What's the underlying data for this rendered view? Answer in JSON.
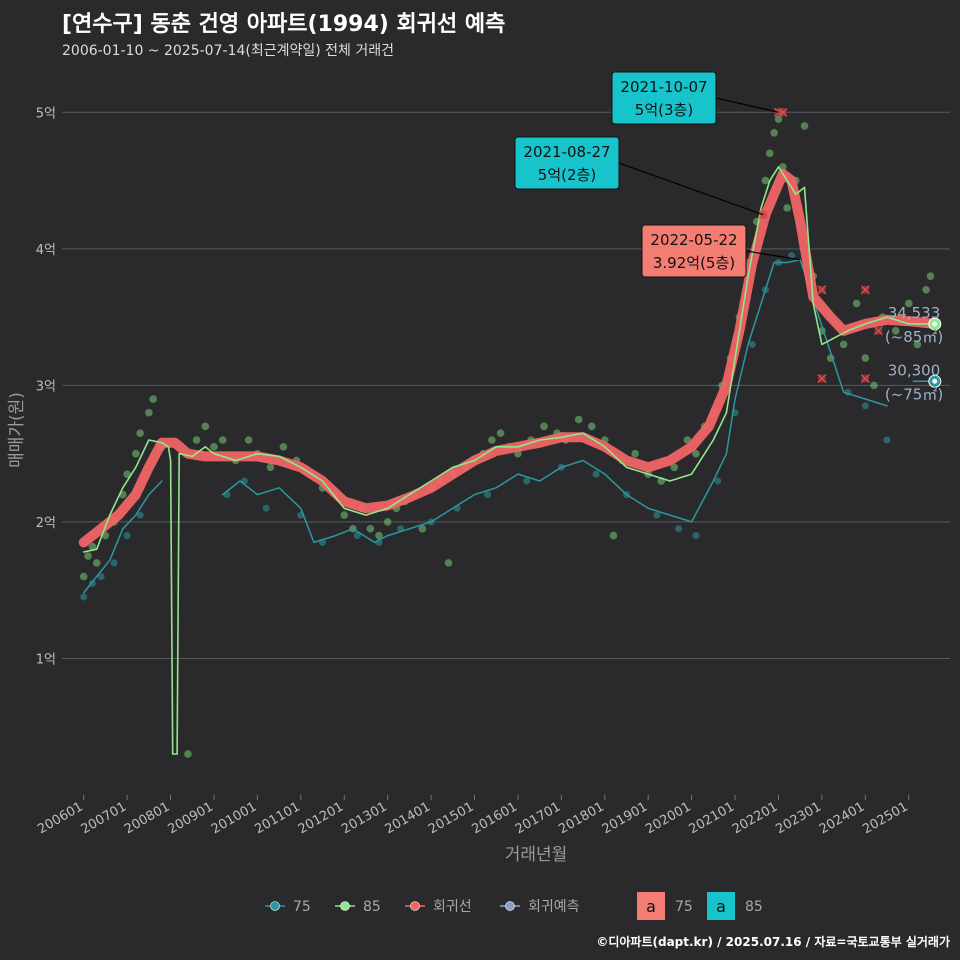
{
  "title": "[연수구] 동춘 건영 아파트(1994) 회귀선 예측",
  "subtitle": "2006-01-10 ~ 2025-07-14(최근계약일) 전체 거래건",
  "footer": "©디아파트(dapt.kr) / 2025.07.16 / 자료=국토교통부 실거래가",
  "colors": {
    "s75": "#2b98a0",
    "s85": "#8fe88a",
    "regression": "#f06565",
    "forecast": "#8aa0c8",
    "ann_blue": "#17c4cc",
    "ann_red": "#f47d73"
  },
  "chart_data": {
    "type": "line",
    "xlabel": "거래년월",
    "ylabel": "매매가(원)",
    "x_ticks": [
      "200601",
      "200701",
      "200801",
      "200901",
      "201001",
      "201101",
      "201201",
      "201301",
      "201401",
      "201501",
      "201601",
      "201701",
      "201801",
      "201901",
      "202001",
      "202101",
      "202201",
      "202301",
      "202401",
      "202501"
    ],
    "y_ticks": [
      {
        "value": 1,
        "label": "1억"
      },
      {
        "value": 2,
        "label": "2억"
      },
      {
        "value": 3,
        "label": "3억"
      },
      {
        "value": 4,
        "label": "4억"
      },
      {
        "value": 5,
        "label": "5억"
      }
    ],
    "ylim": [
      0,
      5.2
    ],
    "xlim": [
      2005.5,
      2025.95
    ],
    "series": [
      {
        "name": "85",
        "values": [
          [
            2006.0,
            1.78
          ],
          [
            2006.3,
            1.8
          ],
          [
            2006.6,
            2.05
          ],
          [
            2006.9,
            2.25
          ],
          [
            2007.2,
            2.4
          ],
          [
            2007.5,
            2.6
          ],
          [
            2007.8,
            2.58
          ],
          [
            2007.95,
            2.55
          ],
          [
            2008.0,
            2.45
          ],
          [
            2008.05,
            0.3
          ],
          [
            2008.15,
            0.3
          ],
          [
            2008.2,
            2.5
          ],
          [
            2008.5,
            2.48
          ],
          [
            2008.8,
            2.55
          ],
          [
            2009.0,
            2.5
          ],
          [
            2009.5,
            2.45
          ],
          [
            2010.0,
            2.5
          ],
          [
            2010.5,
            2.48
          ],
          [
            2011.0,
            2.4
          ],
          [
            2011.5,
            2.3
          ],
          [
            2012.0,
            2.1
          ],
          [
            2012.5,
            2.05
          ],
          [
            2013.0,
            2.1
          ],
          [
            2013.5,
            2.2
          ],
          [
            2014.0,
            2.3
          ],
          [
            2014.5,
            2.4
          ],
          [
            2015.0,
            2.45
          ],
          [
            2015.5,
            2.55
          ],
          [
            2016.0,
            2.55
          ],
          [
            2016.5,
            2.6
          ],
          [
            2017.0,
            2.62
          ],
          [
            2017.5,
            2.65
          ],
          [
            2018.0,
            2.55
          ],
          [
            2018.5,
            2.4
          ],
          [
            2019.0,
            2.35
          ],
          [
            2019.5,
            2.3
          ],
          [
            2020.0,
            2.35
          ],
          [
            2020.5,
            2.6
          ],
          [
            2020.8,
            2.8
          ],
          [
            2021.0,
            3.2
          ],
          [
            2021.3,
            3.8
          ],
          [
            2021.6,
            4.3
          ],
          [
            2021.8,
            4.5
          ],
          [
            2022.0,
            4.6
          ],
          [
            2022.2,
            4.5
          ],
          [
            2022.4,
            4.4
          ],
          [
            2022.6,
            4.45
          ],
          [
            2022.8,
            3.6
          ],
          [
            2023.0,
            3.3
          ],
          [
            2023.3,
            3.35
          ],
          [
            2023.6,
            3.4
          ],
          [
            2024.0,
            3.45
          ],
          [
            2024.5,
            3.5
          ],
          [
            2025.0,
            3.45
          ],
          [
            2025.5,
            3.45
          ]
        ]
      },
      {
        "name": "75",
        "values": [
          [
            2006.0,
            1.48
          ],
          [
            2006.3,
            1.6
          ],
          [
            2006.6,
            1.72
          ],
          [
            2006.9,
            1.95
          ],
          [
            2007.2,
            2.05
          ],
          [
            2007.5,
            2.2
          ],
          [
            2007.8,
            2.3
          ],
          [
            2009.2,
            2.2
          ],
          [
            2009.6,
            2.3
          ],
          [
            2010.0,
            2.2
          ],
          [
            2010.5,
            2.25
          ],
          [
            2011.0,
            2.1
          ],
          [
            2011.3,
            1.85
          ],
          [
            2011.8,
            1.9
          ],
          [
            2012.2,
            1.95
          ],
          [
            2012.7,
            1.85
          ],
          [
            2013.0,
            1.9
          ],
          [
            2013.5,
            1.95
          ],
          [
            2014.0,
            2.0
          ],
          [
            2014.5,
            2.1
          ],
          [
            2015.0,
            2.2
          ],
          [
            2015.5,
            2.25
          ],
          [
            2016.0,
            2.35
          ],
          [
            2016.5,
            2.3
          ],
          [
            2017.0,
            2.4
          ],
          [
            2017.5,
            2.45
          ],
          [
            2018.0,
            2.35
          ],
          [
            2018.5,
            2.2
          ],
          [
            2019.0,
            2.1
          ],
          [
            2019.5,
            2.05
          ],
          [
            2020.0,
            2.0
          ],
          [
            2020.5,
            2.3
          ],
          [
            2020.8,
            2.5
          ],
          [
            2021.0,
            2.9
          ],
          [
            2021.3,
            3.3
          ],
          [
            2021.6,
            3.6
          ],
          [
            2021.9,
            3.9
          ],
          [
            2022.2,
            3.9
          ],
          [
            2022.5,
            3.92
          ],
          [
            2023.5,
            2.95
          ],
          [
            2024.0,
            2.9
          ],
          [
            2024.5,
            2.85
          ]
        ]
      },
      {
        "name": "회귀선",
        "values": [
          [
            2006.0,
            1.85
          ],
          [
            2006.4,
            1.95
          ],
          [
            2006.8,
            2.05
          ],
          [
            2007.2,
            2.2
          ],
          [
            2007.5,
            2.4
          ],
          [
            2007.8,
            2.58
          ],
          [
            2008.1,
            2.58
          ],
          [
            2008.4,
            2.5
          ],
          [
            2008.8,
            2.48
          ],
          [
            2009.2,
            2.48
          ],
          [
            2009.6,
            2.48
          ],
          [
            2010.0,
            2.48
          ],
          [
            2010.5,
            2.45
          ],
          [
            2011.0,
            2.4
          ],
          [
            2011.5,
            2.3
          ],
          [
            2012.0,
            2.15
          ],
          [
            2012.5,
            2.1
          ],
          [
            2013.0,
            2.12
          ],
          [
            2013.5,
            2.18
          ],
          [
            2014.0,
            2.25
          ],
          [
            2014.5,
            2.35
          ],
          [
            2015.0,
            2.45
          ],
          [
            2015.5,
            2.52
          ],
          [
            2016.0,
            2.55
          ],
          [
            2016.5,
            2.58
          ],
          [
            2017.0,
            2.62
          ],
          [
            2017.5,
            2.62
          ],
          [
            2018.0,
            2.55
          ],
          [
            2018.5,
            2.45
          ],
          [
            2019.0,
            2.4
          ],
          [
            2019.5,
            2.45
          ],
          [
            2020.0,
            2.55
          ],
          [
            2020.4,
            2.7
          ],
          [
            2020.8,
            3.0
          ],
          [
            2021.1,
            3.4
          ],
          [
            2021.4,
            3.9
          ],
          [
            2021.7,
            4.25
          ],
          [
            2021.9,
            4.4
          ],
          [
            2022.1,
            4.55
          ],
          [
            2022.3,
            4.5
          ],
          [
            2022.5,
            4.2
          ],
          [
            2022.8,
            3.65
          ],
          [
            2023.2,
            3.5
          ],
          [
            2023.5,
            3.4
          ],
          [
            2024.0,
            3.45
          ],
          [
            2024.5,
            3.48
          ],
          [
            2025.0,
            3.47
          ],
          [
            2025.6,
            3.45
          ]
        ]
      }
    ],
    "scatter_85": [
      [
        2006.0,
        1.6
      ],
      [
        2006.1,
        1.75
      ],
      [
        2006.2,
        1.82
      ],
      [
        2006.3,
        1.7
      ],
      [
        2006.5,
        1.9
      ],
      [
        2006.7,
        2.0
      ],
      [
        2006.9,
        2.2
      ],
      [
        2007.0,
        2.35
      ],
      [
        2007.2,
        2.5
      ],
      [
        2007.3,
        2.65
      ],
      [
        2007.5,
        2.8
      ],
      [
        2007.6,
        2.9
      ],
      [
        2007.8,
        2.55
      ],
      [
        2008.4,
        0.3
      ],
      [
        2008.6,
        2.6
      ],
      [
        2008.8,
        2.7
      ],
      [
        2009.0,
        2.55
      ],
      [
        2009.2,
        2.6
      ],
      [
        2009.5,
        2.45
      ],
      [
        2009.8,
        2.6
      ],
      [
        2010.0,
        2.5
      ],
      [
        2010.3,
        2.4
      ],
      [
        2010.6,
        2.55
      ],
      [
        2010.9,
        2.45
      ],
      [
        2011.2,
        2.35
      ],
      [
        2011.5,
        2.25
      ],
      [
        2011.8,
        2.2
      ],
      [
        2012.0,
        2.05
      ],
      [
        2012.2,
        1.95
      ],
      [
        2012.4,
        2.1
      ],
      [
        2012.6,
        1.95
      ],
      [
        2012.8,
        1.9
      ],
      [
        2013.0,
        2.0
      ],
      [
        2013.2,
        2.1
      ],
      [
        2013.4,
        2.15
      ],
      [
        2013.6,
        2.2
      ],
      [
        2013.8,
        1.95
      ],
      [
        2014.0,
        2.25
      ],
      [
        2014.2,
        2.3
      ],
      [
        2014.4,
        1.7
      ],
      [
        2014.5,
        2.35
      ],
      [
        2014.8,
        2.4
      ],
      [
        2015.0,
        2.45
      ],
      [
        2015.2,
        2.5
      ],
      [
        2015.4,
        2.6
      ],
      [
        2015.6,
        2.65
      ],
      [
        2015.8,
        2.55
      ],
      [
        2016.0,
        2.5
      ],
      [
        2016.3,
        2.6
      ],
      [
        2016.6,
        2.7
      ],
      [
        2016.9,
        2.65
      ],
      [
        2017.1,
        2.6
      ],
      [
        2017.4,
        2.75
      ],
      [
        2017.7,
        2.7
      ],
      [
        2018.0,
        2.6
      ],
      [
        2018.2,
        1.9
      ],
      [
        2018.4,
        2.45
      ],
      [
        2018.7,
        2.5
      ],
      [
        2019.0,
        2.35
      ],
      [
        2019.3,
        2.3
      ],
      [
        2019.6,
        2.4
      ],
      [
        2019.9,
        2.6
      ],
      [
        2020.1,
        2.5
      ],
      [
        2020.3,
        2.7
      ],
      [
        2020.5,
        2.8
      ],
      [
        2020.7,
        3.0
      ],
      [
        2020.9,
        3.2
      ],
      [
        2021.1,
        3.5
      ],
      [
        2021.3,
        3.9
      ],
      [
        2021.5,
        4.2
      ],
      [
        2021.7,
        4.5
      ],
      [
        2021.8,
        4.7
      ],
      [
        2021.9,
        4.85
      ],
      [
        2022.0,
        4.95
      ],
      [
        2022.1,
        4.6
      ],
      [
        2022.2,
        4.3
      ],
      [
        2022.4,
        4.5
      ],
      [
        2022.6,
        4.9
      ],
      [
        2022.8,
        3.8
      ],
      [
        2023.0,
        3.4
      ],
      [
        2023.2,
        3.2
      ],
      [
        2023.5,
        3.3
      ],
      [
        2023.8,
        3.6
      ],
      [
        2024.0,
        3.2
      ],
      [
        2024.2,
        3.0
      ],
      [
        2024.4,
        3.5
      ],
      [
        2024.7,
        3.4
      ],
      [
        2025.0,
        3.6
      ],
      [
        2025.2,
        3.3
      ],
      [
        2025.4,
        3.7
      ],
      [
        2025.5,
        3.8
      ]
    ],
    "scatter_75": [
      [
        2006.0,
        1.45
      ],
      [
        2006.2,
        1.55
      ],
      [
        2006.4,
        1.6
      ],
      [
        2006.7,
        1.7
      ],
      [
        2007.0,
        1.9
      ],
      [
        2007.3,
        2.05
      ],
      [
        2009.3,
        2.2
      ],
      [
        2009.7,
        2.3
      ],
      [
        2010.2,
        2.1
      ],
      [
        2011.0,
        2.05
      ],
      [
        2011.5,
        1.85
      ],
      [
        2012.3,
        1.9
      ],
      [
        2012.8,
        1.85
      ],
      [
        2013.3,
        1.95
      ],
      [
        2014.0,
        2.0
      ],
      [
        2014.6,
        2.1
      ],
      [
        2015.3,
        2.2
      ],
      [
        2016.2,
        2.3
      ],
      [
        2017.0,
        2.4
      ],
      [
        2017.8,
        2.35
      ],
      [
        2018.5,
        2.2
      ],
      [
        2019.2,
        2.05
      ],
      [
        2019.7,
        1.95
      ],
      [
        2020.1,
        1.9
      ],
      [
        2020.6,
        2.3
      ],
      [
        2021.0,
        2.8
      ],
      [
        2021.4,
        3.3
      ],
      [
        2021.7,
        3.7
      ],
      [
        2022.0,
        3.9
      ],
      [
        2022.3,
        3.95
      ],
      [
        2023.6,
        2.95
      ],
      [
        2024.0,
        2.85
      ],
      [
        2024.5,
        2.6
      ]
    ],
    "forecast_marks": [
      [
        2021.65,
        4.25
      ],
      [
        2022.0,
        5.0
      ],
      [
        2022.1,
        5.0
      ],
      [
        2023.0,
        3.7
      ],
      [
        2023.0,
        3.05
      ],
      [
        2024.0,
        3.05
      ],
      [
        2024.0,
        3.7
      ],
      [
        2024.3,
        3.4
      ]
    ],
    "annotations": [
      {
        "date": "2021-08-27",
        "price": "5억(2층)",
        "anchor_x": 2021.65,
        "anchor_y": 4.25,
        "color": "blue"
      },
      {
        "date": "2021-10-07",
        "price": "5억(3층)",
        "anchor_x": 2022.0,
        "anchor_y": 5.0,
        "color": "blue"
      },
      {
        "date": "2022-05-22",
        "price": "3.92억(5층)",
        "anchor_x": 2022.5,
        "anchor_y": 3.92,
        "color": "red"
      }
    ],
    "end_labels": [
      {
        "value": "34,533",
        "unit": "(~85㎡)",
        "x": 2025.6,
        "y": 3.45,
        "series": "85"
      },
      {
        "value": "30,300",
        "unit": "(~75㎡)",
        "x": 2025.6,
        "y": 3.03,
        "series": "75"
      }
    ],
    "legend": {
      "items": [
        {
          "label": "75",
          "color": "#2b98a0"
        },
        {
          "label": "85",
          "color": "#8fe88a"
        },
        {
          "label": "회귀선",
          "color": "#f06565"
        },
        {
          "label": "회귀예측",
          "color": "#8aa0c8"
        }
      ],
      "box_items": [
        {
          "letter": "a",
          "label": "75",
          "color": "#f47d73"
        },
        {
          "letter": "a",
          "label": "85",
          "color": "#17c4cc"
        }
      ],
      "position": "bottom"
    },
    "grid": true
  }
}
